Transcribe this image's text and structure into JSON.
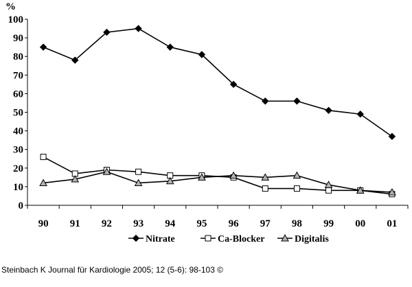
{
  "chart_data": {
    "type": "line",
    "ylabel": "%",
    "categories": [
      "90",
      "91",
      "92",
      "93",
      "94",
      "95",
      "96",
      "97",
      "98",
      "99",
      "00",
      "01"
    ],
    "ylim": [
      0,
      100
    ],
    "yticks": [
      0,
      10,
      20,
      30,
      40,
      50,
      60,
      70,
      80,
      90,
      100
    ],
    "grid": false,
    "legend_position": "bottom",
    "series": [
      {
        "name": "Nitrate",
        "marker": "diamond",
        "values": [
          85,
          78,
          93,
          95,
          85,
          81,
          65,
          56,
          56,
          51,
          49,
          37
        ]
      },
      {
        "name": "Ca-Blocker",
        "marker": "square",
        "values": [
          26,
          17,
          19,
          18,
          16,
          16,
          15,
          9,
          9,
          8,
          8,
          6
        ]
      },
      {
        "name": "Digitalis",
        "marker": "triangle",
        "values": [
          12,
          14,
          18,
          12,
          13,
          15,
          16,
          15,
          16,
          11,
          8,
          7
        ]
      }
    ]
  },
  "citation": "Steinbach K Journal für Kardiologie 2005; 12 (5-6): 98-103 ©"
}
